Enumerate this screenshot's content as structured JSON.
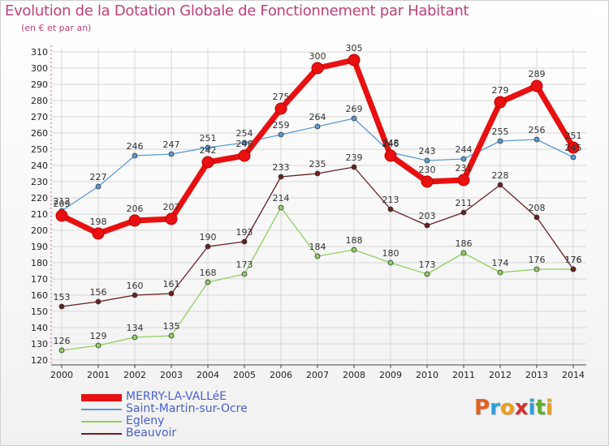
{
  "header": {
    "title": "Evolution de la Dotation Globale de Fonctionnement par Habitant",
    "subtitle": "(en € et par an)"
  },
  "logo": {
    "text": "Proxiti",
    "letters": [
      {
        "ch": "P",
        "color": "#e06020"
      },
      {
        "ch": "r",
        "color": "#2aa0d8"
      },
      {
        "ch": "o",
        "color": "#e8a020"
      },
      {
        "ch": "x",
        "color": "#d83030"
      },
      {
        "ch": "i",
        "color": "#2aa0d8"
      },
      {
        "ch": "t",
        "color": "#60b030"
      },
      {
        "ch": "i",
        "color": "#e8a020"
      }
    ]
  },
  "chart_data": {
    "type": "line",
    "title": "Evolution de la Dotation Globale de Fonctionnement par Habitant",
    "subtitle": "(en € et par an)",
    "xlabel": "",
    "ylabel": "",
    "categories": [
      "2000",
      "2001",
      "2002",
      "2003",
      "2004",
      "2005",
      "2006",
      "2007",
      "2008",
      "2009",
      "2010",
      "2011",
      "2012",
      "2013",
      "2014"
    ],
    "yticks": [
      120,
      130,
      140,
      150,
      160,
      170,
      180,
      190,
      200,
      210,
      220,
      230,
      240,
      250,
      260,
      270,
      280,
      290,
      300,
      310
    ],
    "ylim": [
      117,
      312
    ],
    "grid": true,
    "legend_position": "bottom-left",
    "series": [
      {
        "name": "MERRY-LA-VALLéE",
        "color": "#e81010",
        "width": 7,
        "marker": 7,
        "values": [
          209,
          198,
          206,
          207,
          242,
          246,
          275,
          300,
          305,
          246,
          230,
          231,
          279,
          289,
          251
        ]
      },
      {
        "name": "Saint-Martin-sur-Ocre",
        "color": "#5a9ad8",
        "width": 1.3,
        "marker": 3,
        "values": [
          212,
          227,
          246,
          247,
          251,
          254,
          259,
          264,
          269,
          248,
          243,
          244,
          255,
          256,
          245
        ]
      },
      {
        "name": "Egleny",
        "color": "#90d060",
        "width": 1.3,
        "marker": 3,
        "values": [
          126,
          129,
          134,
          135,
          168,
          173,
          214,
          184,
          188,
          180,
          173,
          186,
          174,
          176,
          176
        ]
      },
      {
        "name": "Beauvoir",
        "color": "#6a2020",
        "width": 1.3,
        "marker": 3,
        "values": [
          153,
          156,
          160,
          161,
          190,
          193,
          233,
          235,
          239,
          213,
          203,
          211,
          228,
          208,
          176
        ]
      }
    ]
  }
}
